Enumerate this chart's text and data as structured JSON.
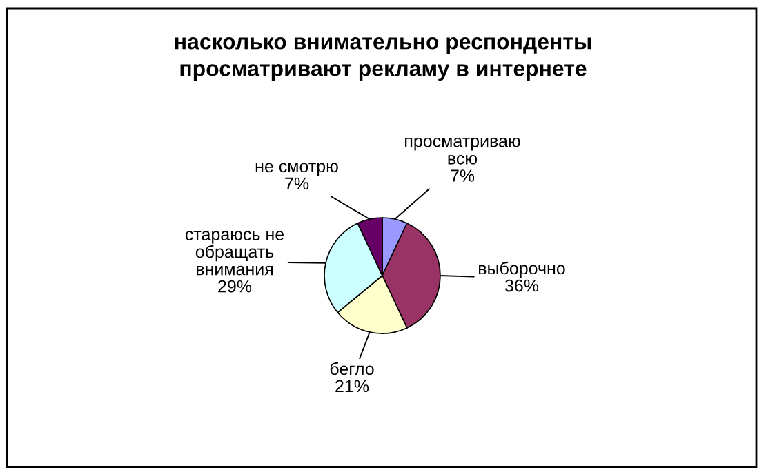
{
  "chart_data": {
    "type": "pie",
    "title": "насколько внимательно респонденты\nпросматривают рекламу в интернете",
    "categories": [
      "просматриваю\nвсю",
      "выборочно",
      "бегло",
      "стараюсь не\nобращать\nвнимания",
      "не смотрю"
    ],
    "values": [
      7,
      36,
      21,
      29,
      7
    ],
    "value_labels": [
      "7%",
      "36%",
      "21%",
      "29%",
      "7%"
    ],
    "colors": [
      "#9999ff",
      "#993366",
      "#ffffcc",
      "#ccffff",
      "#660066"
    ],
    "legend": false
  }
}
